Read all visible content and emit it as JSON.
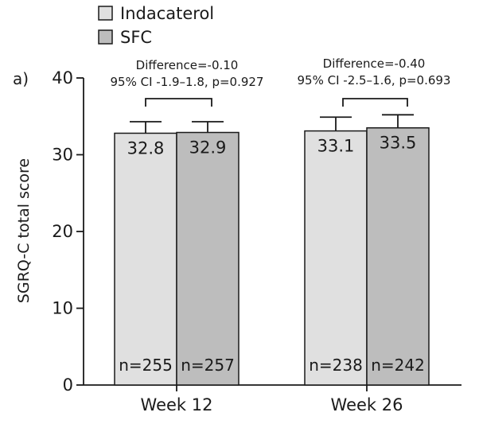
{
  "chart_data": {
    "type": "bar",
    "panel_label": "a)",
    "ylabel": "SGRQ-C total score",
    "xlabel": "",
    "ylim": [
      0,
      40
    ],
    "yticks": [
      0,
      10,
      20,
      30,
      40
    ],
    "categories": [
      "Week 12",
      "Week 26"
    ],
    "legend": {
      "position": "top-left"
    },
    "series": [
      {
        "name": "Indacaterol",
        "color": "#e0e0e0",
        "values": [
          32.8,
          33.1
        ],
        "value_labels": [
          "32.8",
          "33.1"
        ],
        "error_upper": [
          34.3,
          34.9
        ],
        "n_labels": [
          "n=255",
          "n=238"
        ]
      },
      {
        "name": "SFC",
        "color": "#bdbdbd",
        "values": [
          32.9,
          33.5
        ],
        "value_labels": [
          "32.9",
          "33.5"
        ],
        "error_upper": [
          34.3,
          35.2
        ],
        "n_labels": [
          "n=257",
          "n=242"
        ]
      }
    ],
    "annotations": [
      {
        "line1": "Difference=-0.10",
        "line2": "95% CI -1.9–1.8, p=0.927"
      },
      {
        "line1": "Difference=-0.40",
        "line2": "95% CI -2.5–1.6, p=0.693"
      }
    ]
  }
}
